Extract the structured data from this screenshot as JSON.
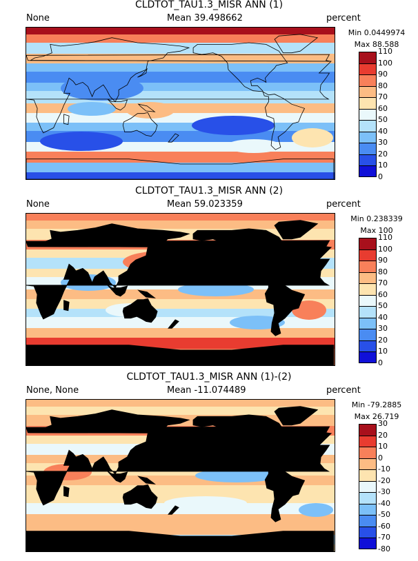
{
  "panels": [
    {
      "title": "CLDTOT_TAU1.3_MISR ANN (1)",
      "left_label": "None",
      "mean_label": "Mean 39.498662",
      "units": "percent",
      "min_label": "Min 0.0449974",
      "max_label": "Max 88.588",
      "land_masked": false,
      "colorbar_ticks": [
        "0",
        "10",
        "20",
        "30",
        "40",
        "50",
        "60",
        "70",
        "80",
        "90",
        "100",
        "110"
      ]
    },
    {
      "title": "CLDTOT_TAU1.3_MISR ANN (2)",
      "left_label": "None",
      "mean_label": "Mean 59.023359",
      "units": "percent",
      "min_label": "Min 0.238339",
      "max_label": "Max 100",
      "land_masked": true,
      "colorbar_ticks": [
        "0",
        "10",
        "20",
        "30",
        "40",
        "50",
        "60",
        "70",
        "80",
        "90",
        "100",
        "110"
      ]
    },
    {
      "title": "CLDTOT_TAU1.3_MISR ANN (1)-(2)",
      "left_label": "None, None",
      "mean_label": "Mean -11.074489",
      "units": "percent",
      "min_label": "Min -79.2885",
      "max_label": "Max 26.719",
      "land_masked": true,
      "colorbar_ticks": [
        "-80",
        "-70",
        "-60",
        "-50",
        "-40",
        "-30",
        "-20",
        "-10",
        "0",
        "10",
        "20",
        "30"
      ]
    }
  ],
  "colors": {
    "palette_low_to_high": [
      "#1010d8",
      "#2850e8",
      "#4a8cf2",
      "#7cc0f8",
      "#b4e2fa",
      "#eaf8fb",
      "#fde4b0",
      "#fcbc84",
      "#f8805a",
      "#e83c30",
      "#a8101c"
    ],
    "land_mask": "#000000"
  }
}
